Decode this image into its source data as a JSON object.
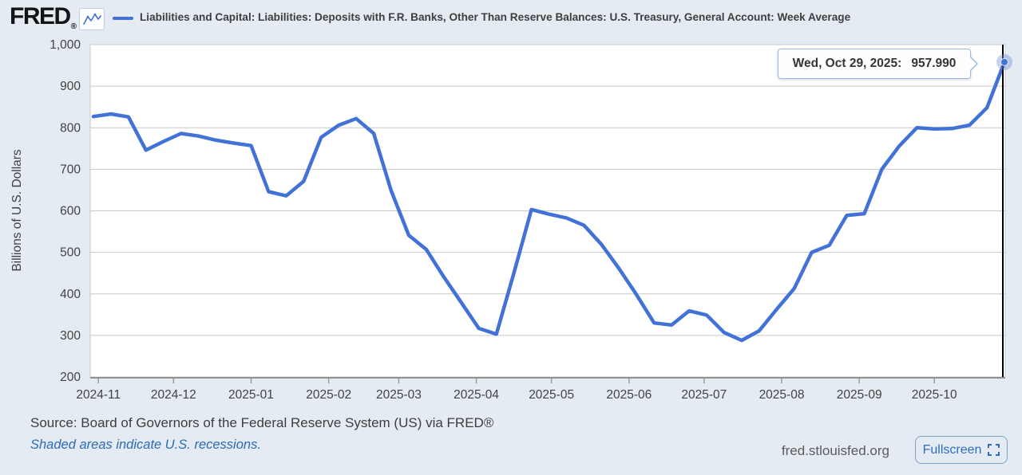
{
  "header": {
    "logo_text": "FRED",
    "logo_reg": "®",
    "legend_label": "Liabilities and Capital: Liabilities: Deposits with F.R. Banks, Other Than Reserve Balances: U.S. Treasury, General Account: Week Average"
  },
  "tooltip": {
    "date_label": "Wed, Oct 29, 2025:",
    "value": "957.990"
  },
  "footer": {
    "source": "Source: Board of Governors of the Federal Reserve System (US) via FRED®",
    "recession_note": "Shaded areas indicate U.S. recessions.",
    "site": "fred.stlouisfed.org",
    "fullscreen_label": "Fullscreen"
  },
  "colors": {
    "line": "#4272d7",
    "page_bg": "#e5ebf3",
    "plot_bg": "#ffffff",
    "gridline": "#c9c9c9",
    "axis_line": "#919191",
    "tick_text": "#424242",
    "crosshair": "#000000",
    "link_blue": "#2a6bb5",
    "marker_halo": "rgba(110,145,215,0.40)"
  },
  "chart_data": {
    "type": "line",
    "title": "Liabilities and Capital: Liabilities: Deposits with F.R. Banks, Other Than Reserve Balances: U.S. Treasury, General Account: Week Average",
    "ylabel": "Billions of U.S. Dollars",
    "xlabel": "",
    "ylim": [
      200,
      1000
    ],
    "grid": true,
    "legend_position": "top",
    "y_ticks": [
      {
        "value": 1000,
        "label": "1,000"
      },
      {
        "value": 900,
        "label": "900"
      },
      {
        "value": 800,
        "label": "800"
      },
      {
        "value": 700,
        "label": "700"
      },
      {
        "value": 600,
        "label": "600"
      },
      {
        "value": 500,
        "label": "500"
      },
      {
        "value": 400,
        "label": "400"
      },
      {
        "value": 300,
        "label": "300"
      },
      {
        "value": 200,
        "label": "200"
      }
    ],
    "x_ticks": [
      {
        "date": "2024-11-01",
        "label": "2024-11"
      },
      {
        "date": "2024-12-01",
        "label": "2024-12"
      },
      {
        "date": "2025-01-01",
        "label": "2025-01"
      },
      {
        "date": "2025-02-01",
        "label": "2025-02"
      },
      {
        "date": "2025-03-01",
        "label": "2025-03"
      },
      {
        "date": "2025-04-01",
        "label": "2025-04"
      },
      {
        "date": "2025-05-01",
        "label": "2025-05"
      },
      {
        "date": "2025-06-01",
        "label": "2025-06"
      },
      {
        "date": "2025-07-01",
        "label": "2025-07"
      },
      {
        "date": "2025-08-01",
        "label": "2025-08"
      },
      {
        "date": "2025-09-01",
        "label": "2025-09"
      },
      {
        "date": "2025-10-01",
        "label": "2025-10"
      }
    ],
    "x_range": [
      "2024-10-30",
      "2025-10-29"
    ],
    "series": [
      {
        "name": "Deposits with F.R. Banks, Other Than Reserve Balances: U.S. Treasury, General Account: Week Average",
        "frequency": "weekly",
        "points": [
          {
            "date": "2024-10-30",
            "value": 827
          },
          {
            "date": "2024-11-06",
            "value": 833
          },
          {
            "date": "2024-11-13",
            "value": 826
          },
          {
            "date": "2024-11-20",
            "value": 746
          },
          {
            "date": "2024-11-27",
            "value": 767
          },
          {
            "date": "2024-12-04",
            "value": 786
          },
          {
            "date": "2024-12-11",
            "value": 780
          },
          {
            "date": "2024-12-18",
            "value": 770
          },
          {
            "date": "2024-12-25",
            "value": 763
          },
          {
            "date": "2025-01-01",
            "value": 757
          },
          {
            "date": "2025-01-08",
            "value": 646
          },
          {
            "date": "2025-01-15",
            "value": 636
          },
          {
            "date": "2025-01-22",
            "value": 671
          },
          {
            "date": "2025-01-29",
            "value": 777
          },
          {
            "date": "2025-02-05",
            "value": 806
          },
          {
            "date": "2025-02-12",
            "value": 822
          },
          {
            "date": "2025-02-19",
            "value": 786
          },
          {
            "date": "2025-02-26",
            "value": 648
          },
          {
            "date": "2025-03-05",
            "value": 541
          },
          {
            "date": "2025-03-12",
            "value": 507
          },
          {
            "date": "2025-03-19",
            "value": 441
          },
          {
            "date": "2025-03-26",
            "value": 379
          },
          {
            "date": "2025-04-02",
            "value": 317
          },
          {
            "date": "2025-04-09",
            "value": 303
          },
          {
            "date": "2025-04-16",
            "value": 450
          },
          {
            "date": "2025-04-23",
            "value": 603
          },
          {
            "date": "2025-04-30",
            "value": 592
          },
          {
            "date": "2025-05-07",
            "value": 583
          },
          {
            "date": "2025-05-14",
            "value": 565
          },
          {
            "date": "2025-05-21",
            "value": 519
          },
          {
            "date": "2025-05-28",
            "value": 461
          },
          {
            "date": "2025-06-04",
            "value": 398
          },
          {
            "date": "2025-06-11",
            "value": 330
          },
          {
            "date": "2025-06-18",
            "value": 325
          },
          {
            "date": "2025-06-25",
            "value": 359
          },
          {
            "date": "2025-07-02",
            "value": 349
          },
          {
            "date": "2025-07-09",
            "value": 307
          },
          {
            "date": "2025-07-16",
            "value": 288
          },
          {
            "date": "2025-07-23",
            "value": 311
          },
          {
            "date": "2025-07-30",
            "value": 363
          },
          {
            "date": "2025-08-06",
            "value": 413
          },
          {
            "date": "2025-08-13",
            "value": 500
          },
          {
            "date": "2025-08-20",
            "value": 517
          },
          {
            "date": "2025-08-27",
            "value": 589
          },
          {
            "date": "2025-09-03",
            "value": 593
          },
          {
            "date": "2025-09-10",
            "value": 700
          },
          {
            "date": "2025-09-17",
            "value": 756
          },
          {
            "date": "2025-09-24",
            "value": 800
          },
          {
            "date": "2025-10-01",
            "value": 797
          },
          {
            "date": "2025-10-08",
            "value": 798
          },
          {
            "date": "2025-10-15",
            "value": 806
          },
          {
            "date": "2025-10-22",
            "value": 848
          },
          {
            "date": "2025-10-29",
            "value": 957.99
          }
        ]
      }
    ],
    "highlighted_point": {
      "date": "2025-10-29",
      "value": 957.99,
      "label": "Wed, Oct 29, 2025:  957.990"
    }
  }
}
